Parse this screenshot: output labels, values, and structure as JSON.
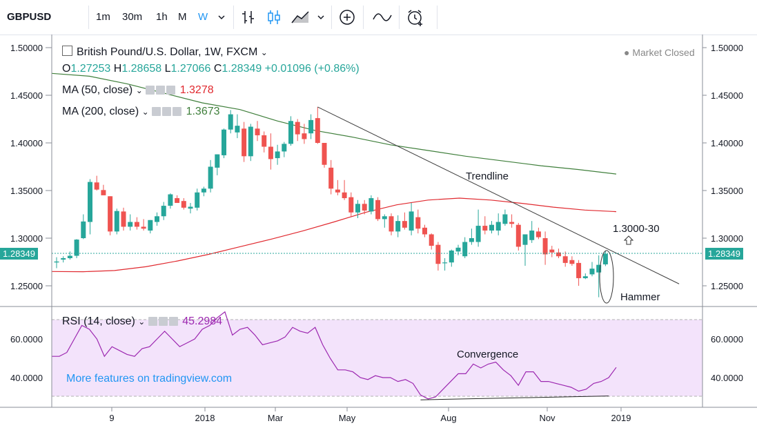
{
  "toolbar": {
    "symbol": "GBPUSD",
    "intervals": [
      "1m",
      "30m",
      "1h",
      "M",
      "W"
    ],
    "selected_interval": "W",
    "icons": [
      "chevron-down-icon",
      "bar-chart-icon",
      "candles-icon",
      "area-chart-icon",
      "chevron-down-icon",
      "add-indicator-icon",
      "compare-icon",
      "alert-clock-icon"
    ]
  },
  "legend": {
    "title": "British Pound/U.S. Dollar, 1W, FXCM",
    "ohlc": {
      "o_label": "O",
      "o": "1.27253",
      "h_label": "H",
      "h": "1.28658",
      "l_label": "L",
      "l": "1.27066",
      "c_label": "C",
      "c": "1.28349",
      "change": "+0.01096 (+0.86%)"
    },
    "ma50_label": "MA (50, close)",
    "ma50_value": "1.3278",
    "ma200_label": "MA (200, close)",
    "ma200_value": "1.3673",
    "market_status": "Market Closed"
  },
  "annotations": {
    "trendline": "Trendline",
    "target": "1.3000-30",
    "hammer": "Hammer",
    "convergence": "Convergence",
    "promo": "More features on tradingview.com"
  },
  "rsi_legend": {
    "label": "RSI (14, close)",
    "value": "45.2984"
  },
  "colors": {
    "up": "#26a69a",
    "down": "#ef5350",
    "ma50": "#e0282e",
    "ma200": "#3e7e3a",
    "rsi": "#9c27b0",
    "rsi_band": "#f3e3fb",
    "trendline": "#3d3d3d",
    "promo": "#2196f3"
  },
  "chart_data": [
    {
      "type": "candlestick",
      "title": "British Pound/U.S. Dollar, 1W, FXCM",
      "y_ticks": [
        "1.50000",
        "1.45000",
        "1.40000",
        "1.35000",
        "1.30000",
        "1.25000"
      ],
      "ylim": [
        1.225,
        1.505
      ],
      "x_ticks": [
        "9",
        "2018",
        "Mar",
        "May",
        "Aug",
        "Nov",
        "2019"
      ],
      "last_price": "1.28349",
      "candles": [
        {
          "o": 1.2745,
          "h": 1.28,
          "l": 1.2685,
          "c": 1.2755
        },
        {
          "o": 1.2775,
          "h": 1.281,
          "l": 1.2745,
          "c": 1.279
        },
        {
          "o": 1.279,
          "h": 1.286,
          "l": 1.2775,
          "c": 1.2815
        },
        {
          "o": 1.2815,
          "h": 1.299,
          "l": 1.279,
          "c": 1.2985
        },
        {
          "o": 1.3,
          "h": 1.325,
          "l": 1.299,
          "c": 1.3175
        },
        {
          "o": 1.317,
          "h": 1.362,
          "l": 1.304,
          "c": 1.359
        },
        {
          "o": 1.3585,
          "h": 1.3655,
          "l": 1.35,
          "c": 1.351
        },
        {
          "o": 1.3505,
          "h": 1.356,
          "l": 1.3455,
          "c": 1.345
        },
        {
          "o": 1.344,
          "h": 1.344,
          "l": 1.303,
          "c": 1.307
        },
        {
          "o": 1.307,
          "h": 1.331,
          "l": 1.304,
          "c": 1.3285
        },
        {
          "o": 1.328,
          "h": 1.332,
          "l": 1.308,
          "c": 1.312
        },
        {
          "o": 1.312,
          "h": 1.325,
          "l": 1.308,
          "c": 1.317
        },
        {
          "o": 1.317,
          "h": 1.322,
          "l": 1.309,
          "c": 1.312
        },
        {
          "o": 1.312,
          "h": 1.32,
          "l": 1.308,
          "c": 1.31
        },
        {
          "o": 1.308,
          "h": 1.319,
          "l": 1.305,
          "c": 1.319
        },
        {
          "o": 1.317,
          "h": 1.327,
          "l": 1.313,
          "c": 1.323
        },
        {
          "o": 1.323,
          "h": 1.338,
          "l": 1.319,
          "c": 1.334
        },
        {
          "o": 1.334,
          "h": 1.347,
          "l": 1.331,
          "c": 1.346
        },
        {
          "o": 1.342,
          "h": 1.345,
          "l": 1.337,
          "c": 1.337
        },
        {
          "o": 1.339,
          "h": 1.342,
          "l": 1.33,
          "c": 1.332
        },
        {
          "o": 1.331,
          "h": 1.337,
          "l": 1.326,
          "c": 1.333
        },
        {
          "o": 1.332,
          "h": 1.352,
          "l": 1.329,
          "c": 1.348
        },
        {
          "o": 1.348,
          "h": 1.354,
          "l": 1.344,
          "c": 1.352
        },
        {
          "o": 1.352,
          "h": 1.382,
          "l": 1.348,
          "c": 1.375
        },
        {
          "o": 1.374,
          "h": 1.388,
          "l": 1.366,
          "c": 1.388
        },
        {
          "o": 1.387,
          "h": 1.415,
          "l": 1.384,
          "c": 1.414
        },
        {
          "o": 1.414,
          "h": 1.4345,
          "l": 1.41,
          "c": 1.43
        },
        {
          "o": 1.411,
          "h": 1.43,
          "l": 1.405,
          "c": 1.418
        },
        {
          "o": 1.415,
          "h": 1.422,
          "l": 1.38,
          "c": 1.386
        },
        {
          "o": 1.386,
          "h": 1.42,
          "l": 1.381,
          "c": 1.417
        },
        {
          "o": 1.415,
          "h": 1.423,
          "l": 1.402,
          "c": 1.408
        },
        {
          "o": 1.408,
          "h": 1.412,
          "l": 1.39,
          "c": 1.396
        },
        {
          "o": 1.396,
          "h": 1.41,
          "l": 1.372,
          "c": 1.383
        },
        {
          "o": 1.384,
          "h": 1.398,
          "l": 1.377,
          "c": 1.391
        },
        {
          "o": 1.391,
          "h": 1.401,
          "l": 1.385,
          "c": 1.399
        },
        {
          "o": 1.399,
          "h": 1.428,
          "l": 1.397,
          "c": 1.423
        },
        {
          "o": 1.422,
          "h": 1.425,
          "l": 1.402,
          "c": 1.409
        },
        {
          "o": 1.41,
          "h": 1.42,
          "l": 1.399,
          "c": 1.404
        },
        {
          "o": 1.41,
          "h": 1.43,
          "l": 1.404,
          "c": 1.424
        },
        {
          "o": 1.426,
          "h": 1.4377,
          "l": 1.399,
          "c": 1.4
        },
        {
          "o": 1.4,
          "h": 1.4,
          "l": 1.374,
          "c": 1.377
        },
        {
          "o": 1.374,
          "h": 1.382,
          "l": 1.346,
          "c": 1.352
        },
        {
          "o": 1.351,
          "h": 1.361,
          "l": 1.345,
          "c": 1.348
        },
        {
          "o": 1.348,
          "h": 1.361,
          "l": 1.34,
          "c": 1.342
        },
        {
          "o": 1.343,
          "h": 1.348,
          "l": 1.323,
          "c": 1.327
        },
        {
          "o": 1.327,
          "h": 1.34,
          "l": 1.321,
          "c": 1.336
        },
        {
          "o": 1.336,
          "h": 1.34,
          "l": 1.325,
          "c": 1.329
        },
        {
          "o": 1.328,
          "h": 1.345,
          "l": 1.325,
          "c": 1.342
        },
        {
          "o": 1.34,
          "h": 1.343,
          "l": 1.318,
          "c": 1.32
        },
        {
          "o": 1.32,
          "h": 1.325,
          "l": 1.311,
          "c": 1.323
        },
        {
          "o": 1.323,
          "h": 1.326,
          "l": 1.303,
          "c": 1.307
        },
        {
          "o": 1.307,
          "h": 1.324,
          "l": 1.301,
          "c": 1.318
        },
        {
          "o": 1.318,
          "h": 1.327,
          "l": 1.309,
          "c": 1.311
        },
        {
          "o": 1.308,
          "h": 1.337,
          "l": 1.303,
          "c": 1.328
        },
        {
          "o": 1.322,
          "h": 1.33,
          "l": 1.305,
          "c": 1.31
        },
        {
          "o": 1.311,
          "h": 1.314,
          "l": 1.301,
          "c": 1.304
        },
        {
          "o": 1.304,
          "h": 1.305,
          "l": 1.288,
          "c": 1.292
        },
        {
          "o": 1.293,
          "h": 1.296,
          "l": 1.266,
          "c": 1.273
        },
        {
          "o": 1.2745,
          "h": 1.279,
          "l": 1.266,
          "c": 1.2745
        },
        {
          "o": 1.2745,
          "h": 1.288,
          "l": 1.27,
          "c": 1.287
        },
        {
          "o": 1.286,
          "h": 1.293,
          "l": 1.282,
          "c": 1.29
        },
        {
          "o": 1.281,
          "h": 1.301,
          "l": 1.279,
          "c": 1.296
        },
        {
          "o": 1.296,
          "h": 1.31,
          "l": 1.293,
          "c": 1.3
        },
        {
          "o": 1.296,
          "h": 1.33,
          "l": 1.291,
          "c": 1.313
        },
        {
          "o": 1.313,
          "h": 1.323,
          "l": 1.304,
          "c": 1.308
        },
        {
          "o": 1.308,
          "h": 1.318,
          "l": 1.305,
          "c": 1.314
        },
        {
          "o": 1.308,
          "h": 1.326,
          "l": 1.303,
          "c": 1.317
        },
        {
          "o": 1.315,
          "h": 1.33,
          "l": 1.313,
          "c": 1.325
        },
        {
          "o": 1.317,
          "h": 1.325,
          "l": 1.311,
          "c": 1.315
        },
        {
          "o": 1.314,
          "h": 1.316,
          "l": 1.287,
          "c": 1.291
        },
        {
          "o": 1.293,
          "h": 1.304,
          "l": 1.271,
          "c": 1.304
        },
        {
          "o": 1.298,
          "h": 1.318,
          "l": 1.295,
          "c": 1.308
        },
        {
          "o": 1.307,
          "h": 1.311,
          "l": 1.299,
          "c": 1.301
        },
        {
          "o": 1.3,
          "h": 1.307,
          "l": 1.272,
          "c": 1.283
        },
        {
          "o": 1.288,
          "h": 1.292,
          "l": 1.28,
          "c": 1.285
        },
        {
          "o": 1.285,
          "h": 1.289,
          "l": 1.279,
          "c": 1.281
        },
        {
          "o": 1.281,
          "h": 1.286,
          "l": 1.27,
          "c": 1.274
        },
        {
          "o": 1.277,
          "h": 1.281,
          "l": 1.271,
          "c": 1.273
        },
        {
          "o": 1.274,
          "h": 1.277,
          "l": 1.25,
          "c": 1.258
        },
        {
          "o": 1.258,
          "h": 1.263,
          "l": 1.257,
          "c": 1.26
        },
        {
          "o": 1.262,
          "h": 1.275,
          "l": 1.26,
          "c": 1.268
        },
        {
          "o": 1.264,
          "h": 1.282,
          "l": 1.238,
          "c": 1.272
        },
        {
          "o": 1.2725,
          "h": 1.2866,
          "l": 1.2707,
          "c": 1.2835
        }
      ],
      "ma50": [
        1.265,
        1.2648,
        1.266,
        1.27,
        1.276,
        1.283,
        1.291,
        1.299,
        1.3075,
        1.317,
        1.327,
        1.335,
        1.34,
        1.342,
        1.34,
        1.3365,
        1.3325,
        1.3295,
        1.3278
      ],
      "ma200": [
        1.473,
        1.47,
        1.462,
        1.452,
        1.442,
        1.435,
        1.423,
        1.413,
        1.406,
        1.398,
        1.392,
        1.386,
        1.381,
        1.376,
        1.372,
        1.3673
      ],
      "trendline": {
        "from": {
          "bar": 39,
          "price": 1.4377
        },
        "to": {
          "bar": 93,
          "price": 1.252
        }
      }
    },
    {
      "type": "line",
      "title": "RSI (14, close)",
      "y_ticks": [
        "60.0000",
        "40.0000"
      ],
      "ylim": [
        25,
        74
      ],
      "band": [
        30,
        70
      ],
      "values": [
        51,
        51,
        53,
        60,
        67,
        65,
        60,
        51,
        56,
        54,
        52,
        51,
        55,
        56,
        60,
        64,
        60,
        56,
        58,
        60,
        65,
        67,
        71,
        74,
        62,
        65,
        66,
        62,
        57,
        58,
        59,
        61,
        66,
        64,
        63,
        66,
        57,
        50,
        44,
        44,
        43,
        40,
        39,
        41,
        40,
        40,
        38,
        39,
        37,
        31,
        29,
        30,
        34,
        38,
        42,
        42,
        47,
        45,
        47,
        48,
        44,
        41,
        36,
        43,
        43,
        38,
        38,
        37,
        36,
        35,
        33,
        34,
        37,
        38,
        40,
        45.3
      ],
      "convergence_line": {
        "from": {
          "bar": 49,
          "value": 28.5
        },
        "to": {
          "bar": 74,
          "value": 30.5
        }
      }
    }
  ]
}
